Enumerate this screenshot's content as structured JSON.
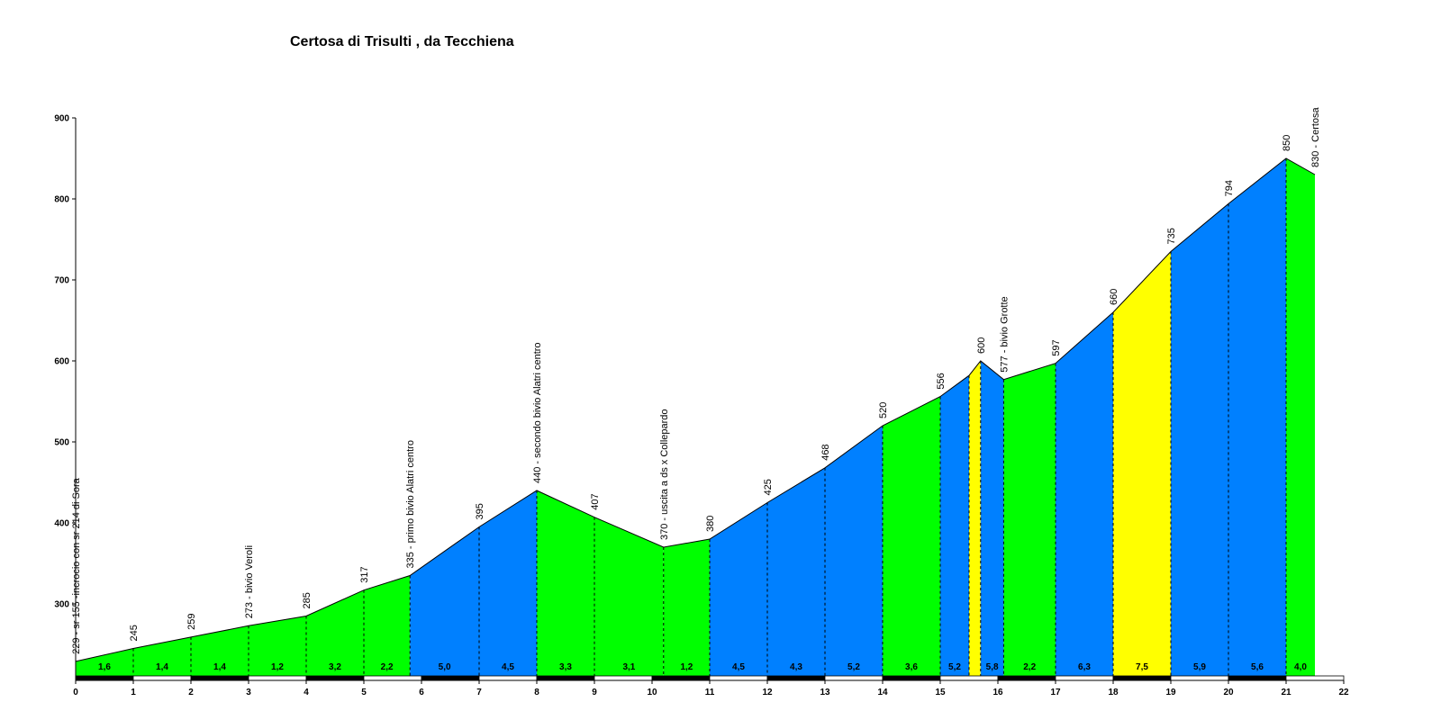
{
  "title": "Certosa di Trisulti , da Tecchiena",
  "colors": {
    "green": "#00ff00",
    "blue": "#0080ff",
    "yellow": "#ffff00",
    "line": "#000000",
    "background": "#ffffff"
  },
  "chart_data": {
    "type": "area",
    "title": "Certosa di Trisulti , da Tecchiena",
    "xlabel": "",
    "ylabel": "",
    "xlim": [
      0,
      22
    ],
    "ylim": [
      215,
      900
    ],
    "y_ticks": [
      300,
      400,
      500,
      600,
      700,
      800,
      900
    ],
    "x_ticks": [
      0,
      1,
      2,
      3,
      4,
      5,
      6,
      7,
      8,
      9,
      10,
      11,
      12,
      13,
      14,
      15,
      16,
      17,
      18,
      19,
      20,
      21,
      22
    ],
    "grid": false,
    "points": [
      {
        "km": 0.0,
        "alt": 229,
        "label": "229 - sr 155 -incrocio con sr 214 di Sora"
      },
      {
        "km": 1.0,
        "alt": 245,
        "label": "245"
      },
      {
        "km": 2.0,
        "alt": 259,
        "label": "259"
      },
      {
        "km": 3.0,
        "alt": 273,
        "label": "273 - bivio Veroli"
      },
      {
        "km": 4.0,
        "alt": 285,
        "label": "285"
      },
      {
        "km": 5.0,
        "alt": 317,
        "label": "317"
      },
      {
        "km": 5.8,
        "alt": 335,
        "label": "335 - primo bivio Alatri centro"
      },
      {
        "km": 7.0,
        "alt": 395,
        "label": "395"
      },
      {
        "km": 8.0,
        "alt": 440,
        "label": "440 - secondo bivio Alatri centro"
      },
      {
        "km": 9.0,
        "alt": 407,
        "label": "407"
      },
      {
        "km": 10.2,
        "alt": 370,
        "label": "370 - uscita a ds x Collepardo"
      },
      {
        "km": 11.0,
        "alt": 380,
        "label": "380"
      },
      {
        "km": 12.0,
        "alt": 425,
        "label": "425"
      },
      {
        "km": 13.0,
        "alt": 468,
        "label": "468"
      },
      {
        "km": 14.0,
        "alt": 520,
        "label": "520"
      },
      {
        "km": 15.0,
        "alt": 556,
        "label": "556"
      },
      {
        "km": 15.5,
        "alt": 582,
        "label": ""
      },
      {
        "km": 15.7,
        "alt": 600,
        "label": "600"
      },
      {
        "km": 16.1,
        "alt": 577,
        "label": "577 - bivio Grotte"
      },
      {
        "km": 17.0,
        "alt": 597,
        "label": "597"
      },
      {
        "km": 18.0,
        "alt": 660,
        "label": "660"
      },
      {
        "km": 19.0,
        "alt": 735,
        "label": "735"
      },
      {
        "km": 20.0,
        "alt": 794,
        "label": "794"
      },
      {
        "km": 21.0,
        "alt": 850,
        "label": "850"
      },
      {
        "km": 21.5,
        "alt": 830,
        "label": "830 - Certosa"
      }
    ],
    "segments": [
      {
        "gradient": "1,6",
        "color": "green"
      },
      {
        "gradient": "1,4",
        "color": "green"
      },
      {
        "gradient": "1,4",
        "color": "green"
      },
      {
        "gradient": "1,2",
        "color": "green"
      },
      {
        "gradient": "3,2",
        "color": "green"
      },
      {
        "gradient": "2,2",
        "color": "green"
      },
      {
        "gradient": "5,0",
        "color": "blue"
      },
      {
        "gradient": "4,5",
        "color": "blue"
      },
      {
        "gradient": "3,3",
        "color": "green"
      },
      {
        "gradient": "3,1",
        "color": "green"
      },
      {
        "gradient": "1,2",
        "color": "green"
      },
      {
        "gradient": "4,5",
        "color": "blue"
      },
      {
        "gradient": "4,3",
        "color": "blue"
      },
      {
        "gradient": "5,2",
        "color": "blue"
      },
      {
        "gradient": "3,6",
        "color": "green"
      },
      {
        "gradient": "5,2",
        "color": "blue"
      },
      {
        "gradient": "",
        "color": "yellow"
      },
      {
        "gradient": "5,8",
        "color": "blue"
      },
      {
        "gradient": "2,2",
        "color": "green"
      },
      {
        "gradient": "6,3",
        "color": "blue"
      },
      {
        "gradient": "7,5",
        "color": "yellow"
      },
      {
        "gradient": "5,9",
        "color": "blue"
      },
      {
        "gradient": "5,6",
        "color": "blue"
      },
      {
        "gradient": "4,0",
        "color": "green"
      }
    ],
    "gradient_label_km": [
      null,
      null,
      null,
      null,
      null,
      null,
      null,
      null,
      null,
      null,
      null,
      null,
      null,
      null,
      null,
      null,
      null,
      15.9,
      null,
      null,
      null,
      null,
      null,
      null
    ]
  }
}
